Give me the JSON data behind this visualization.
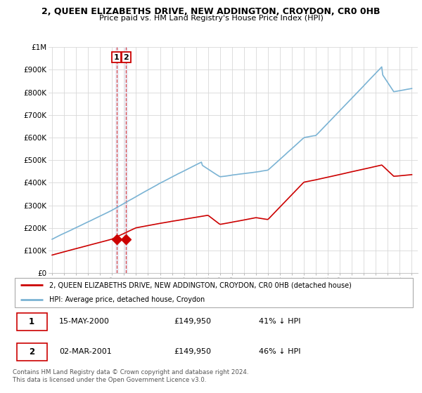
{
  "title": "2, QUEEN ELIZABETHS DRIVE, NEW ADDINGTON, CROYDON, CR0 0HB",
  "subtitle": "Price paid vs. HM Land Registry's House Price Index (HPI)",
  "ylim": [
    0,
    1000000
  ],
  "yticks": [
    0,
    100000,
    200000,
    300000,
    400000,
    500000,
    600000,
    700000,
    800000,
    900000,
    1000000
  ],
  "ytick_labels": [
    "£0",
    "£100K",
    "£200K",
    "£300K",
    "£400K",
    "£500K",
    "£600K",
    "£700K",
    "£800K",
    "£900K",
    "£1M"
  ],
  "hpi_color": "#7ab3d4",
  "price_color": "#cc0000",
  "sale1_date": 2000.37,
  "sale1_price": 149950,
  "sale2_date": 2001.17,
  "sale2_price": 149950,
  "legend_line1": "2, QUEEN ELIZABETHS DRIVE, NEW ADDINGTON, CROYDON, CR0 0HB (detached house)",
  "legend_line2": "HPI: Average price, detached house, Croydon",
  "table_row1": [
    "1",
    "15-MAY-2000",
    "£149,950",
    "41% ↓ HPI"
  ],
  "table_row2": [
    "2",
    "02-MAR-2001",
    "£149,950",
    "46% ↓ HPI"
  ],
  "footnote": "Contains HM Land Registry data © Crown copyright and database right 2024.\nThis data is licensed under the Open Government Licence v3.0.",
  "grid_color": "#d8d8d8",
  "xlim_min": 1994.7,
  "xlim_max": 2025.5
}
